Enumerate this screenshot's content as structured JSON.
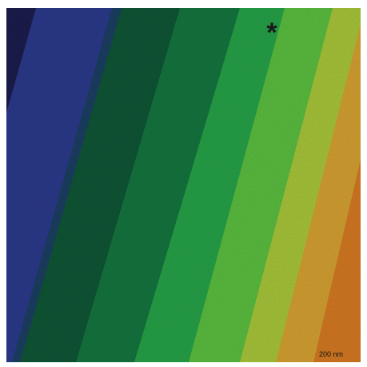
{
  "image": {
    "marker": "*",
    "scale_bar_label": "200 nm"
  }
}
